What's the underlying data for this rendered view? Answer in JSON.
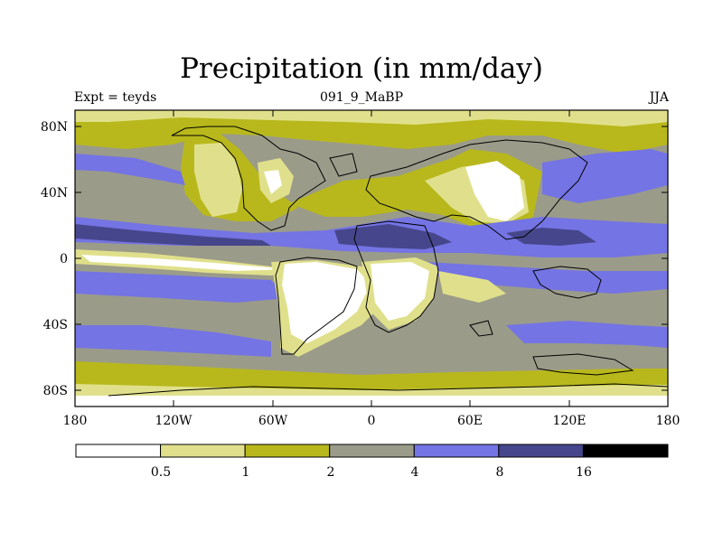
{
  "title": "Precipitation (in mm/day)",
  "left_string": "Expt = teyds",
  "center_string": "091_9_MaBP",
  "right_string": "JJA",
  "lat_labels": [
    "80N",
    "40N",
    "0",
    "40S",
    "80S"
  ],
  "lon_labels": [
    "180",
    "120W",
    "60W",
    "0",
    "60E",
    "120E",
    "180"
  ],
  "colorbar": {
    "labels": [
      "0.5",
      "1",
      "2",
      "4",
      "8",
      "16"
    ],
    "colors": [
      "#ffffff",
      "#e0e08c",
      "#b8b81c",
      "#9b9b8a",
      "#7474e4",
      "#46468c",
      "#000000"
    ]
  },
  "chart_data": {
    "type": "heatmap",
    "title": "Precipitation (in mm/day)",
    "variable": "Precipitation",
    "units": "mm/day",
    "experiment": "teyds",
    "period": "091_9_MaBP",
    "season": "JJA",
    "x_range": [
      -180,
      180
    ],
    "y_range": [
      -90,
      90
    ],
    "contour_levels": [
      0.5,
      1,
      2,
      4,
      8,
      16
    ]
  }
}
